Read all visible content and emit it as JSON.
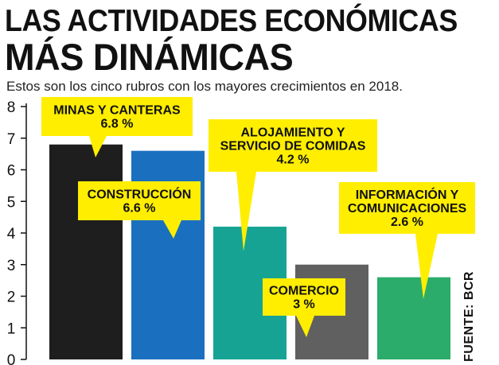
{
  "title": {
    "line1": "LAS ACTIVIDADES ECONÓMICAS",
    "line2": "MÁS DINÁMICAS"
  },
  "subtitle": "Estos son los cinco rubros con los mayores crecimientos en 2018.",
  "source": "FUENTE: BCR",
  "chart_data": {
    "type": "bar",
    "categories": [
      "MINAS Y CANTERAS",
      "CONSTRUCCIÓN",
      "ALOJAMIENTO Y SERVICIO DE COMIDAS",
      "COMERCIO",
      "INFORMACIÓN Y COMUNICACIONES"
    ],
    "values": [
      6.8,
      6.6,
      4.2,
      3,
      2.6
    ],
    "data_labels": [
      "6.8 %",
      "6.6 %",
      "4.2 %",
      "3 %",
      "2.6 %"
    ],
    "callout_lines": [
      [
        "MINAS Y CANTERAS"
      ],
      [
        "CONSTRUCCIÓN"
      ],
      [
        "ALOJAMIENTO Y",
        "SERVICIO DE COMIDAS"
      ],
      [
        "COMERCIO"
      ],
      [
        "INFORMACIÓN Y",
        "COMUNICACIONES"
      ]
    ],
    "colors": [
      "#1e1e1e",
      "#1a6fbf",
      "#16a394",
      "#606060",
      "#2bac6a"
    ],
    "callout_color": "#ffee00",
    "yticks": [
      0,
      1,
      2,
      3,
      4,
      5,
      6,
      7,
      8
    ],
    "ylim": [
      0,
      8
    ],
    "grid": false,
    "xlabel": "",
    "ylabel": ""
  }
}
